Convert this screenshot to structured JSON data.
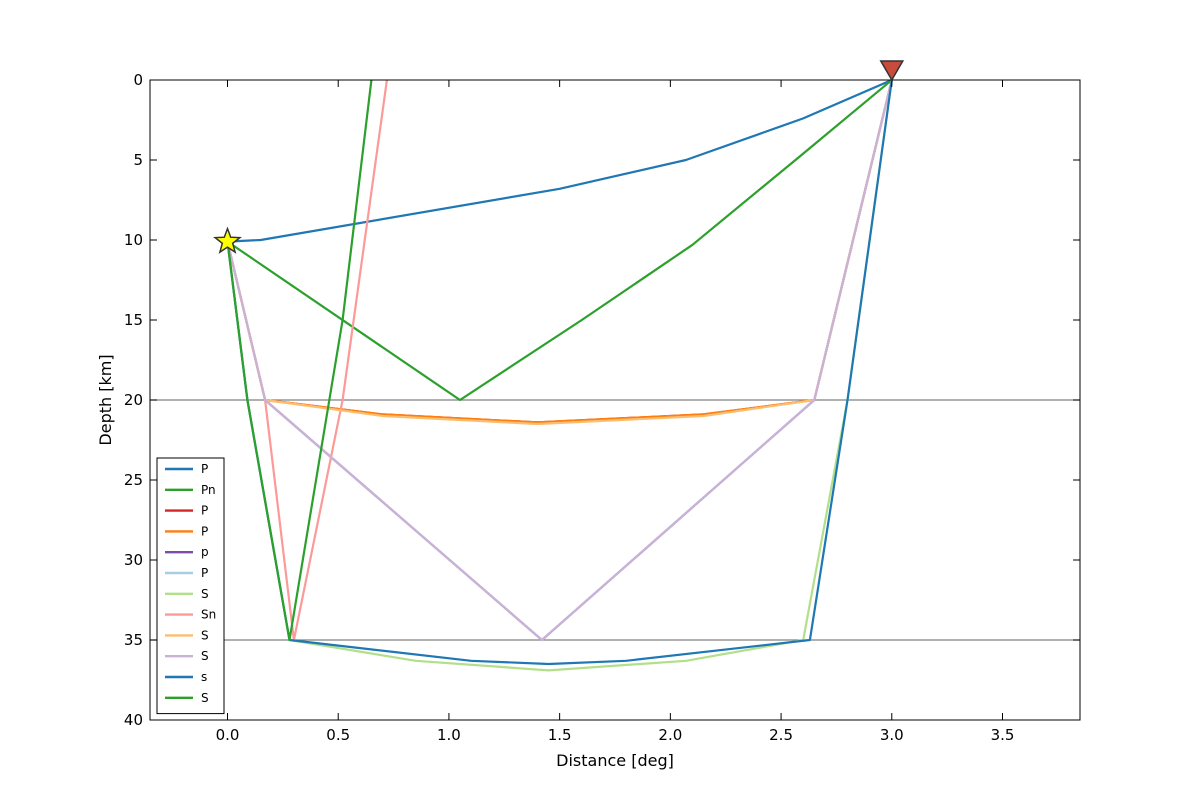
{
  "chart_data": {
    "type": "line",
    "title": "",
    "xlabel": "Distance [deg]",
    "ylabel": "Depth [km]",
    "xlim": [
      -0.35,
      3.85
    ],
    "ylim": [
      0,
      40
    ],
    "y_inverted": true,
    "grid": false,
    "xticks": [
      "0.0",
      "0.5",
      "1.0",
      "1.5",
      "2.0",
      "2.5",
      "3.0",
      "3.5"
    ],
    "xtick_values": [
      0,
      0.5,
      1.0,
      1.5,
      2.0,
      2.5,
      3.0,
      3.5
    ],
    "yticks": [
      "0",
      "5",
      "10",
      "15",
      "20",
      "25",
      "30",
      "35",
      "40"
    ],
    "ytick_values": [
      0,
      5,
      10,
      15,
      20,
      25,
      30,
      35,
      40
    ],
    "discontinuities": [
      20,
      35
    ],
    "source": {
      "distance": 0,
      "depth": 10.1,
      "marker": "star",
      "color": "#ffff00"
    },
    "station": {
      "distance": 3.0,
      "depth": 0,
      "marker": "triangle-down",
      "color": "#c84b3c"
    },
    "legend_position": "lower-left",
    "series": [
      {
        "name": "P",
        "color": "#1f77b4",
        "x": [
          0,
          0.15,
          1.5,
          2.07,
          2.6,
          3.0
        ],
        "y": [
          10.1,
          10,
          6.8,
          5,
          2.4,
          0
        ]
      },
      {
        "name": "Pn",
        "color": "#2ca02c",
        "x": [
          0,
          1.05,
          1.6,
          2.1,
          2.6,
          3.0
        ],
        "y": [
          10.1,
          20,
          15,
          10.3,
          4.6,
          0
        ]
      },
      {
        "name": "P",
        "color": "#d62728",
        "x": [
          0,
          0.17,
          0.7,
          1.4,
          2.15,
          2.65,
          3.0
        ],
        "y": [
          10.1,
          20,
          20.9,
          21.4,
          20.9,
          20,
          0
        ]
      },
      {
        "name": "P",
        "color": "#ff7f0e",
        "x": [
          0,
          0.17,
          0.7,
          1.4,
          2.15,
          2.65,
          3.0
        ],
        "y": [
          10.1,
          20,
          20.9,
          21.4,
          20.9,
          20,
          0
        ]
      },
      {
        "name": "p",
        "color": "#7b4ea3",
        "x": [
          0,
          0.17,
          1.42,
          2.65,
          3.0
        ],
        "y": [
          10.1,
          20,
          35,
          20,
          0
        ]
      },
      {
        "name": "P",
        "color": "#a6cee3",
        "x": [
          0,
          0.17,
          1.42,
          2.65,
          3.0
        ],
        "y": [
          10.1,
          20,
          35,
          20,
          0
        ]
      },
      {
        "name": "S",
        "color": "#b2df8a",
        "x": [
          0,
          0.09,
          0.28,
          0.85,
          1.45,
          2.07,
          2.6,
          2.8,
          3.0
        ],
        "y": [
          10.1,
          20,
          35,
          36.3,
          36.9,
          36.3,
          35,
          20,
          0
        ]
      },
      {
        "name": "Sn",
        "color": "#fb9a99",
        "x": [
          0,
          0.17,
          0.3,
          0.52,
          0.72
        ],
        "y": [
          10.1,
          20,
          35,
          20,
          0
        ]
      },
      {
        "name": "S",
        "color": "#fdbf6f",
        "x": [
          0,
          0.17,
          0.7,
          1.4,
          2.15,
          2.65,
          3.0
        ],
        "y": [
          10.1,
          20,
          21,
          21.5,
          21,
          20,
          0
        ]
      },
      {
        "name": "S",
        "color": "#cab2d6",
        "x": [
          0,
          0.17,
          1.42,
          2.65,
          3.0
        ],
        "y": [
          10.1,
          20,
          35,
          20,
          0
        ]
      },
      {
        "name": "s",
        "color": "#1f77b4",
        "x": [
          0,
          0.09,
          0.28,
          1.1,
          1.45,
          1.8,
          2.63,
          2.8,
          3.0
        ],
        "y": [
          10.1,
          20,
          35,
          36.3,
          36.5,
          36.3,
          35,
          20,
          0
        ]
      },
      {
        "name": "S",
        "color": "#2ca02c",
        "x": [
          0,
          0.09,
          0.28,
          0.52,
          0.65
        ],
        "y": [
          10.1,
          20,
          35,
          15,
          0
        ]
      }
    ]
  }
}
